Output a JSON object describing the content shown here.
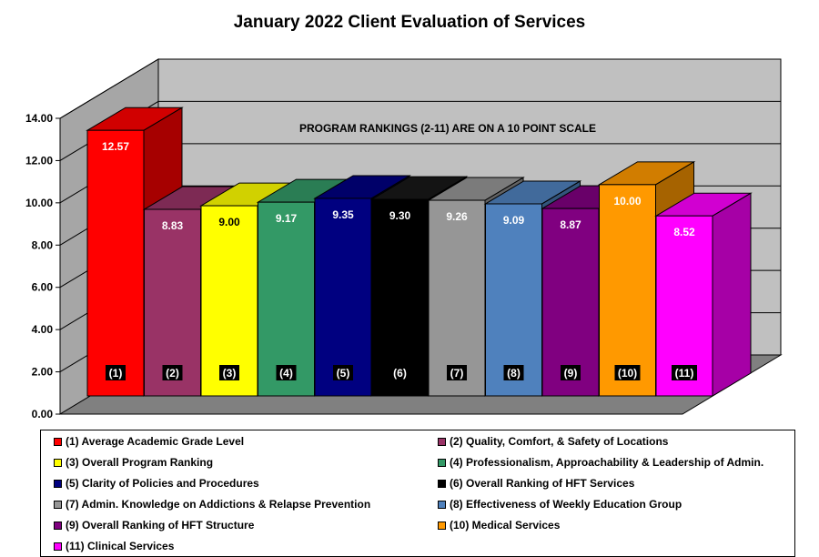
{
  "chart_data": {
    "type": "bar",
    "title": "January 2022 Client Evaluation of Services",
    "annotation": "PROGRAM RANKINGS (2-11) ARE ON A 10 POINT SCALE",
    "ylim": [
      0,
      14
    ],
    "yticks": [
      "0.00",
      "2.00",
      "4.00",
      "6.00",
      "8.00",
      "10.00",
      "12.00",
      "14.00"
    ],
    "grid": true,
    "three_d": true,
    "legend_position": "bottom",
    "categories": [
      "(1)",
      "(2)",
      "(3)",
      "(4)",
      "(5)",
      "(6)",
      "(7)",
      "(8)",
      "(9)",
      "(10)",
      "(11)"
    ],
    "series": [
      {
        "name": "(1) Average Academic Grade Level",
        "category": "(1)",
        "value": 12.57,
        "label": "12.57",
        "color": "#ff0000"
      },
      {
        "name": "(2) Quality, Comfort, & Safety of Locations",
        "category": "(2)",
        "value": 8.83,
        "label": "8.83",
        "color": "#993366"
      },
      {
        "name": "(3) Overall Program Ranking",
        "category": "(3)",
        "value": 9.0,
        "label": "9.00",
        "color": "#ffff00"
      },
      {
        "name": "(4) Professionalism, Approachability  & Leadership of Admin.",
        "category": "(4)",
        "value": 9.17,
        "label": "9.17",
        "color": "#339966"
      },
      {
        "name": "(5) Clarity of Policies and Procedures",
        "category": "(5)",
        "value": 9.35,
        "label": "9.35",
        "color": "#000080"
      },
      {
        "name": "(6) Overall Ranking of HFT Services",
        "category": "(6)",
        "value": 9.3,
        "label": "9.30",
        "color": "#000000"
      },
      {
        "name": "(7) Admin. Knowledge on Addictions & Relapse Prevention",
        "category": "(7)",
        "value": 9.26,
        "label": "9.26",
        "color": "#969696"
      },
      {
        "name": "(8) Effectiveness of Weekly Education Group",
        "category": "(8)",
        "value": 9.09,
        "label": "9.09",
        "color": "#4f81bd"
      },
      {
        "name": "(9) Overall Ranking of HFT Structure",
        "category": "(9)",
        "value": 8.87,
        "label": "8.87",
        "color": "#800080"
      },
      {
        "name": "(10) Medical Services",
        "category": "(10)",
        "value": 10.0,
        "label": "10.00",
        "color": "#ff9900"
      },
      {
        "name": "(11) Clinical Services",
        "category": "(11)",
        "value": 8.52,
        "label": "8.52",
        "color": "#ff00ff"
      }
    ]
  }
}
